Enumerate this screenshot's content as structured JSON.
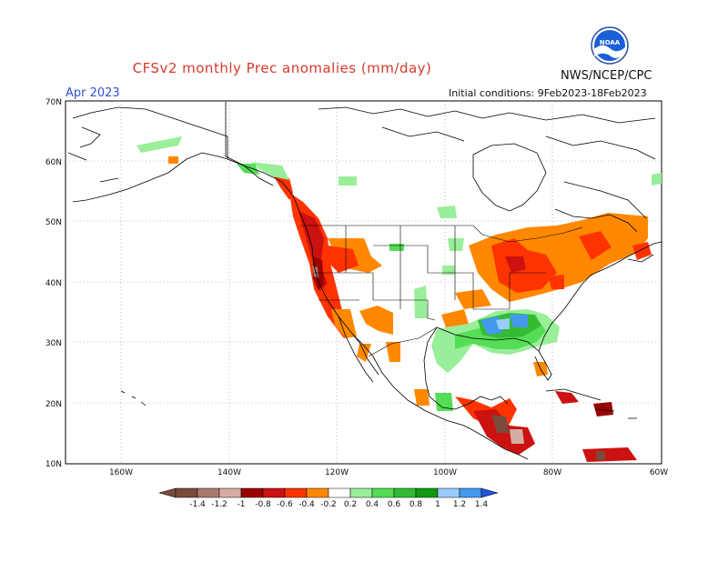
{
  "header": {
    "title": "CFSv2 monthly Prec anomalies (mm/day)",
    "agency": "NWS/NCEP/CPC",
    "month": "Apr 2023",
    "initial_conditions": "Initial conditions: 9Feb2023-18Feb2023",
    "logo_text": "NOAA"
  },
  "map": {
    "lat_labels": [
      "70N",
      "60N",
      "50N",
      "40N",
      "30N",
      "20N",
      "10N"
    ],
    "lon_labels": [
      "160W",
      "140W",
      "120W",
      "100W",
      "80W",
      "60W"
    ]
  },
  "colorbar": {
    "labels": [
      "-1.4",
      "-1.2",
      "-1",
      "-0.8",
      "-0.6",
      "-0.4",
      "-0.2",
      "0.2",
      "0.4",
      "0.6",
      "0.8",
      "1",
      "1.2",
      "1.4"
    ],
    "colors": [
      "#7a4a3a",
      "#a87a6e",
      "#d4aca4",
      "#990000",
      "#cc1111",
      "#ff3300",
      "#ff8800",
      "#ffffff",
      "#99ee99",
      "#55dd55",
      "#33bb33",
      "#119911",
      "#99ccff",
      "#4499ee",
      "#2255dd"
    ]
  }
}
